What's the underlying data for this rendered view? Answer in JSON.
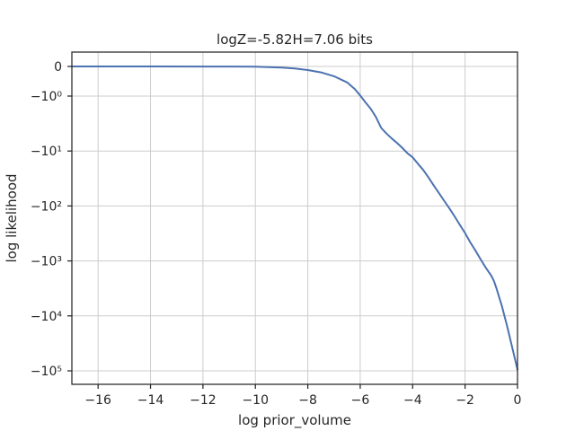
{
  "chart_data": {
    "type": "line",
    "title": "logZ=-5.82H=7.06 bits",
    "xlabel": "log prior_volume",
    "ylabel": "log likelihood",
    "xlim": [
      -17,
      0
    ],
    "y_scale": "symlog",
    "grid": true,
    "x_ticks": [
      {
        "value": -16,
        "label": "−16"
      },
      {
        "value": -14,
        "label": "−14"
      },
      {
        "value": -12,
        "label": "−12"
      },
      {
        "value": -10,
        "label": "−10"
      },
      {
        "value": -8,
        "label": "−8"
      },
      {
        "value": -6,
        "label": "−6"
      },
      {
        "value": -4,
        "label": "−4"
      },
      {
        "value": -2,
        "label": "−2"
      },
      {
        "value": 0,
        "label": "0"
      }
    ],
    "y_ticks": [
      {
        "value": 0,
        "label": "0"
      },
      {
        "value": -1,
        "label": "−10⁰"
      },
      {
        "value": -10,
        "label": "−10¹"
      },
      {
        "value": -100,
        "label": "−10²"
      },
      {
        "value": -1000,
        "label": "−10³"
      },
      {
        "value": -10000,
        "label": "−10⁴"
      },
      {
        "value": -100000,
        "label": "−10⁵"
      }
    ],
    "series": [
      {
        "color": "#4c72b0",
        "x": [
          -17,
          -16,
          -14,
          -12,
          -11,
          -10,
          -9.5,
          -9,
          -8.5,
          -8,
          -7.5,
          -7,
          -6.5,
          -6.2,
          -6.0,
          -5.8,
          -5.6,
          -5.4,
          -5.2,
          -5.0,
          -4.8,
          -4.6,
          -4.4,
          -4.2,
          -4.0,
          -3.8,
          -3.6,
          -3.4,
          -3.2,
          -3.0,
          -2.8,
          -2.6,
          -2.4,
          -2.2,
          -2.0,
          -1.8,
          -1.6,
          -1.4,
          -1.2,
          -1.0,
          -0.9,
          -0.8,
          -0.6,
          -0.4,
          -0.2,
          0.0
        ],
        "y": [
          -0.001,
          -0.001,
          -0.001,
          -0.002,
          -0.004,
          -0.01,
          -0.02,
          -0.04,
          -0.07,
          -0.12,
          -0.2,
          -0.33,
          -0.54,
          -0.77,
          -0.98,
          -1.3,
          -1.7,
          -2.4,
          -3.8,
          -4.8,
          -5.9,
          -7.1,
          -8.7,
          -11,
          -13,
          -17,
          -22,
          -30,
          -42,
          -58,
          -80,
          -110,
          -155,
          -220,
          -310,
          -460,
          -650,
          -950,
          -1350,
          -1850,
          -2300,
          -3200,
          -6500,
          -15000,
          -38000,
          -95000
        ]
      }
    ]
  }
}
